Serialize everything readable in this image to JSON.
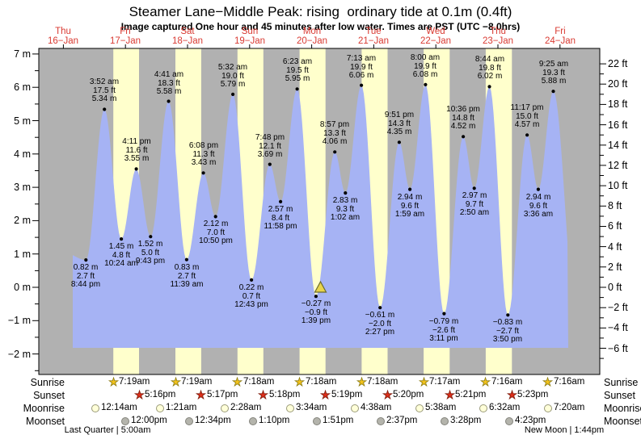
{
  "title": "Steamer Lane−Middle Peak: rising  ordinary tide at 0.1m (0.4ft)",
  "subtitle": "Image captured One hour and 45 minutes after low water. Times are PST (UTC −8.0hrs)",
  "colors": {
    "night_band": "#b1b1b1",
    "daylight_band": "#ffffcc",
    "tide_fill": "#a6b3f4",
    "frame": "#000000",
    "day_label_red": "#d93a32",
    "sunrise_star": "#f2c21c",
    "sunrise_star_edge": "#8a7a10",
    "sunset_star": "#dd2e1a",
    "sunset_star_edge": "#7a1a0a",
    "moonrise_fill": "#ffffd9",
    "moonrise_edge": "#9a9a7a",
    "moonset_fill": "#b4b4ac",
    "moonset_edge": "#83837b",
    "marker_fill": "#e8d44d",
    "marker_edge": "#6b6b2a"
  },
  "rows": {
    "sunrise": "Sunrise",
    "sunset": "Sunset",
    "moonrise": "Moonrise",
    "moonset": "Moonset"
  },
  "chart_data": {
    "type": "area",
    "title": "Steamer Lane−Middle Peak: rising  ordinary tide at 0.1m (0.4ft)",
    "subtitle": "Image captured One hour and 45 minutes after low water. Times are PST (UTC −8.0hrs)",
    "y_axis_left_unit": "m",
    "y_axis_right_unit": "ft",
    "ylim_m": [
      -2.6,
      7.15
    ],
    "y_left_ticks": [
      {
        "label": "7 m",
        "v": 7
      },
      {
        "label": "6 m",
        "v": 6
      },
      {
        "label": "5 m",
        "v": 5
      },
      {
        "label": "4 m",
        "v": 4
      },
      {
        "label": "3 m",
        "v": 3
      },
      {
        "label": "2 m",
        "v": 2
      },
      {
        "label": "1 m",
        "v": 1
      },
      {
        "label": "0 m",
        "v": 0
      },
      {
        "label": "−1 m",
        "v": -1
      },
      {
        "label": "−2 m",
        "v": -2
      }
    ],
    "y_right_ticks": [
      {
        "label": "22 ft",
        "ft": 22
      },
      {
        "label": "20 ft",
        "ft": 20
      },
      {
        "label": "18 ft",
        "ft": 18
      },
      {
        "label": "16 ft",
        "ft": 16
      },
      {
        "label": "14 ft",
        "ft": 14
      },
      {
        "label": "12 ft",
        "ft": 12
      },
      {
        "label": "10 ft",
        "ft": 10
      },
      {
        "label": "8 ft",
        "ft": 8
      },
      {
        "label": "6 ft",
        "ft": 6
      },
      {
        "label": "4 ft",
        "ft": 4
      },
      {
        "label": "2 ft",
        "ft": 2
      },
      {
        "label": "0 ft",
        "ft": 0
      },
      {
        "label": "−2 ft",
        "ft": -2
      },
      {
        "label": "−4 ft",
        "ft": -4
      },
      {
        "label": "−6 ft",
        "ft": -6
      }
    ],
    "days": [
      {
        "name": "Thu",
        "date": "16−Jan"
      },
      {
        "name": "Fri",
        "date": "17−Jan"
      },
      {
        "name": "Sat",
        "date": "18−Jan"
      },
      {
        "name": "Sun",
        "date": "19−Jan"
      },
      {
        "name": "Mon",
        "date": "20−Jan"
      },
      {
        "name": "Tue",
        "date": "21−Jan"
      },
      {
        "name": "Wed",
        "date": "22−Jan"
      },
      {
        "name": "Thu",
        "date": "23−Jan"
      },
      {
        "name": "Fri",
        "date": "24−Jan"
      }
    ],
    "extremes": [
      {
        "kind": "low",
        "t": 20.73,
        "m_val": 0.82,
        "m": "0.82 m",
        "ft": "2.7 ft",
        "time": "8:44 pm"
      },
      {
        "kind": "high",
        "t": 27.87,
        "m_val": 5.34,
        "m": "5.34 m",
        "ft": "17.5 ft",
        "time": "3:52 am"
      },
      {
        "kind": "low",
        "t": 34.4,
        "m_val": 1.45,
        "m": "1.45 m",
        "ft": "4.8 ft",
        "time": "10:24 am"
      },
      {
        "kind": "high",
        "t": 40.18,
        "m_val": 3.55,
        "m": "3.55 m",
        "ft": "11.6 ft",
        "time": "4:11 pm"
      },
      {
        "kind": "low",
        "t": 45.72,
        "m_val": 1.52,
        "m": "1.52 m",
        "ft": "5.0 ft",
        "time": "9:43 pm"
      },
      {
        "kind": "high",
        "t": 52.68,
        "m_val": 5.58,
        "m": "5.58 m",
        "ft": "18.3 ft",
        "time": "4:41 am"
      },
      {
        "kind": "low",
        "t": 59.65,
        "m_val": 0.83,
        "m": "0.83 m",
        "ft": "2.7 ft",
        "time": "11:39 am"
      },
      {
        "kind": "high",
        "t": 66.13,
        "m_val": 3.43,
        "m": "3.43 m",
        "ft": "11.3 ft",
        "time": "6:08 pm"
      },
      {
        "kind": "low",
        "t": 70.83,
        "m_val": 2.12,
        "m": "2.12 m",
        "ft": "7.0 ft",
        "time": "10:50 pm"
      },
      {
        "kind": "high",
        "t": 77.53,
        "m_val": 5.79,
        "m": "5.79 m",
        "ft": "19.0 ft",
        "time": "5:32 am"
      },
      {
        "kind": "low",
        "t": 84.72,
        "m_val": 0.22,
        "m": "0.22 m",
        "ft": "0.7 ft",
        "time": "12:43 pm"
      },
      {
        "kind": "high",
        "t": 91.8,
        "m_val": 3.69,
        "m": "3.69 m",
        "ft": "12.1 ft",
        "time": "7:48 pm"
      },
      {
        "kind": "low",
        "t": 95.97,
        "m_val": 2.57,
        "m": "2.57 m",
        "ft": "8.4 ft",
        "time": "11:58 pm"
      },
      {
        "kind": "high",
        "t": 102.38,
        "m_val": 5.95,
        "m": "5.95 m",
        "ft": "19.5 ft",
        "time": "6:23 am"
      },
      {
        "kind": "low",
        "t": 109.65,
        "m_val": -0.27,
        "m": "−0.27 m",
        "ft": "−0.9 ft",
        "time": "1:39 pm"
      },
      {
        "kind": "high",
        "t": 116.95,
        "m_val": 4.06,
        "m": "4.06 m",
        "ft": "13.3 ft",
        "time": "8:57 pm"
      },
      {
        "kind": "low",
        "t": 121.03,
        "m_val": 2.83,
        "m": "2.83 m",
        "ft": "9.3 ft",
        "time": "1:02 am"
      },
      {
        "kind": "high",
        "t": 127.22,
        "m_val": 6.06,
        "m": "6.06 m",
        "ft": "19.9 ft",
        "time": "7:13 am"
      },
      {
        "kind": "low",
        "t": 134.45,
        "m_val": -0.61,
        "m": "−0.61 m",
        "ft": "−2.0 ft",
        "time": "2:27 pm"
      },
      {
        "kind": "high",
        "t": 141.85,
        "m_val": 4.35,
        "m": "4.35 m",
        "ft": "14.3 ft",
        "time": "9:51 pm"
      },
      {
        "kind": "low",
        "t": 145.98,
        "m_val": 2.94,
        "m": "2.94 m",
        "ft": "9.6 ft",
        "time": "1:59 am"
      },
      {
        "kind": "high",
        "t": 152.0,
        "m_val": 6.08,
        "m": "6.08 m",
        "ft": "19.9 ft",
        "time": "8:00 am"
      },
      {
        "kind": "low",
        "t": 159.18,
        "m_val": -0.79,
        "m": "−0.79 m",
        "ft": "−2.6 ft",
        "time": "3:11 pm"
      },
      {
        "kind": "high",
        "t": 166.6,
        "m_val": 4.52,
        "m": "4.52 m",
        "ft": "14.8 ft",
        "time": "10:36 pm"
      },
      {
        "kind": "low",
        "t": 170.83,
        "m_val": 2.97,
        "m": "2.97 m",
        "ft": "9.7 ft",
        "time": "2:50 am"
      },
      {
        "kind": "high",
        "t": 176.73,
        "m_val": 6.02,
        "m": "6.02 m",
        "ft": "19.8 ft",
        "time": "8:44 am"
      },
      {
        "kind": "low",
        "t": 183.83,
        "m_val": -0.83,
        "m": "−0.83 m",
        "ft": "−2.7 ft",
        "time": "3:50 pm"
      },
      {
        "kind": "high",
        "t": 191.28,
        "m_val": 4.57,
        "m": "4.57 m",
        "ft": "15.0 ft",
        "time": "11:17 pm"
      },
      {
        "kind": "low",
        "t": 195.6,
        "m_val": 2.94,
        "m": "2.94 m",
        "ft": "9.6 ft",
        "time": "3:36 am"
      },
      {
        "kind": "high",
        "t": 201.42,
        "m_val": 5.88,
        "m": "5.88 m",
        "ft": "19.3 ft",
        "time": "9:25 am"
      }
    ],
    "current_marker": {
      "t": 111.4,
      "m_val": 0.1,
      "label": "current tide 0.1m (0.4ft)"
    },
    "sun_moon": {
      "sunrise": [
        {
          "time": "7:19am",
          "t": 31.32
        },
        {
          "time": "7:19am",
          "t": 55.32
        },
        {
          "time": "7:18am",
          "t": 79.3
        },
        {
          "time": "7:18am",
          "t": 103.3
        },
        {
          "time": "7:18am",
          "t": 127.3
        },
        {
          "time": "7:17am",
          "t": 151.28
        },
        {
          "time": "7:16am",
          "t": 175.27
        },
        {
          "time": "7:16am",
          "t": 199.27
        }
      ],
      "sunset": [
        {
          "time": "5:16pm",
          "t": 41.27
        },
        {
          "time": "5:17pm",
          "t": 65.28
        },
        {
          "time": "5:18pm",
          "t": 89.3
        },
        {
          "time": "5:19pm",
          "t": 113.32
        },
        {
          "time": "5:20pm",
          "t": 137.33
        },
        {
          "time": "5:21pm",
          "t": 161.35
        },
        {
          "time": "5:23pm",
          "t": 185.38
        }
      ],
      "moonrise": [
        {
          "time": "12:14am",
          "t": 24.23
        },
        {
          "time": "1:21am",
          "t": 49.35
        },
        {
          "time": "2:28am",
          "t": 74.47
        },
        {
          "time": "3:34am",
          "t": 99.57
        },
        {
          "time": "4:38am",
          "t": 124.63
        },
        {
          "time": "5:38am",
          "t": 149.63
        },
        {
          "time": "6:32am",
          "t": 174.53
        },
        {
          "time": "7:20am",
          "t": 199.33
        }
      ],
      "moonset": [
        {
          "time": "12:00pm",
          "t": 36.0
        },
        {
          "time": "12:34pm",
          "t": 60.57
        },
        {
          "time": "1:10pm",
          "t": 85.17
        },
        {
          "time": "1:51pm",
          "t": 109.85
        },
        {
          "time": "2:37pm",
          "t": 134.62
        },
        {
          "time": "3:28pm",
          "t": 159.47
        },
        {
          "time": "4:23pm",
          "t": 184.38
        }
      ],
      "phases": [
        {
          "label": "Last Quarter | 5:00am",
          "t": 29.0
        },
        {
          "label": "New Moon | 1:44pm",
          "t": 205.73
        }
      ]
    }
  }
}
